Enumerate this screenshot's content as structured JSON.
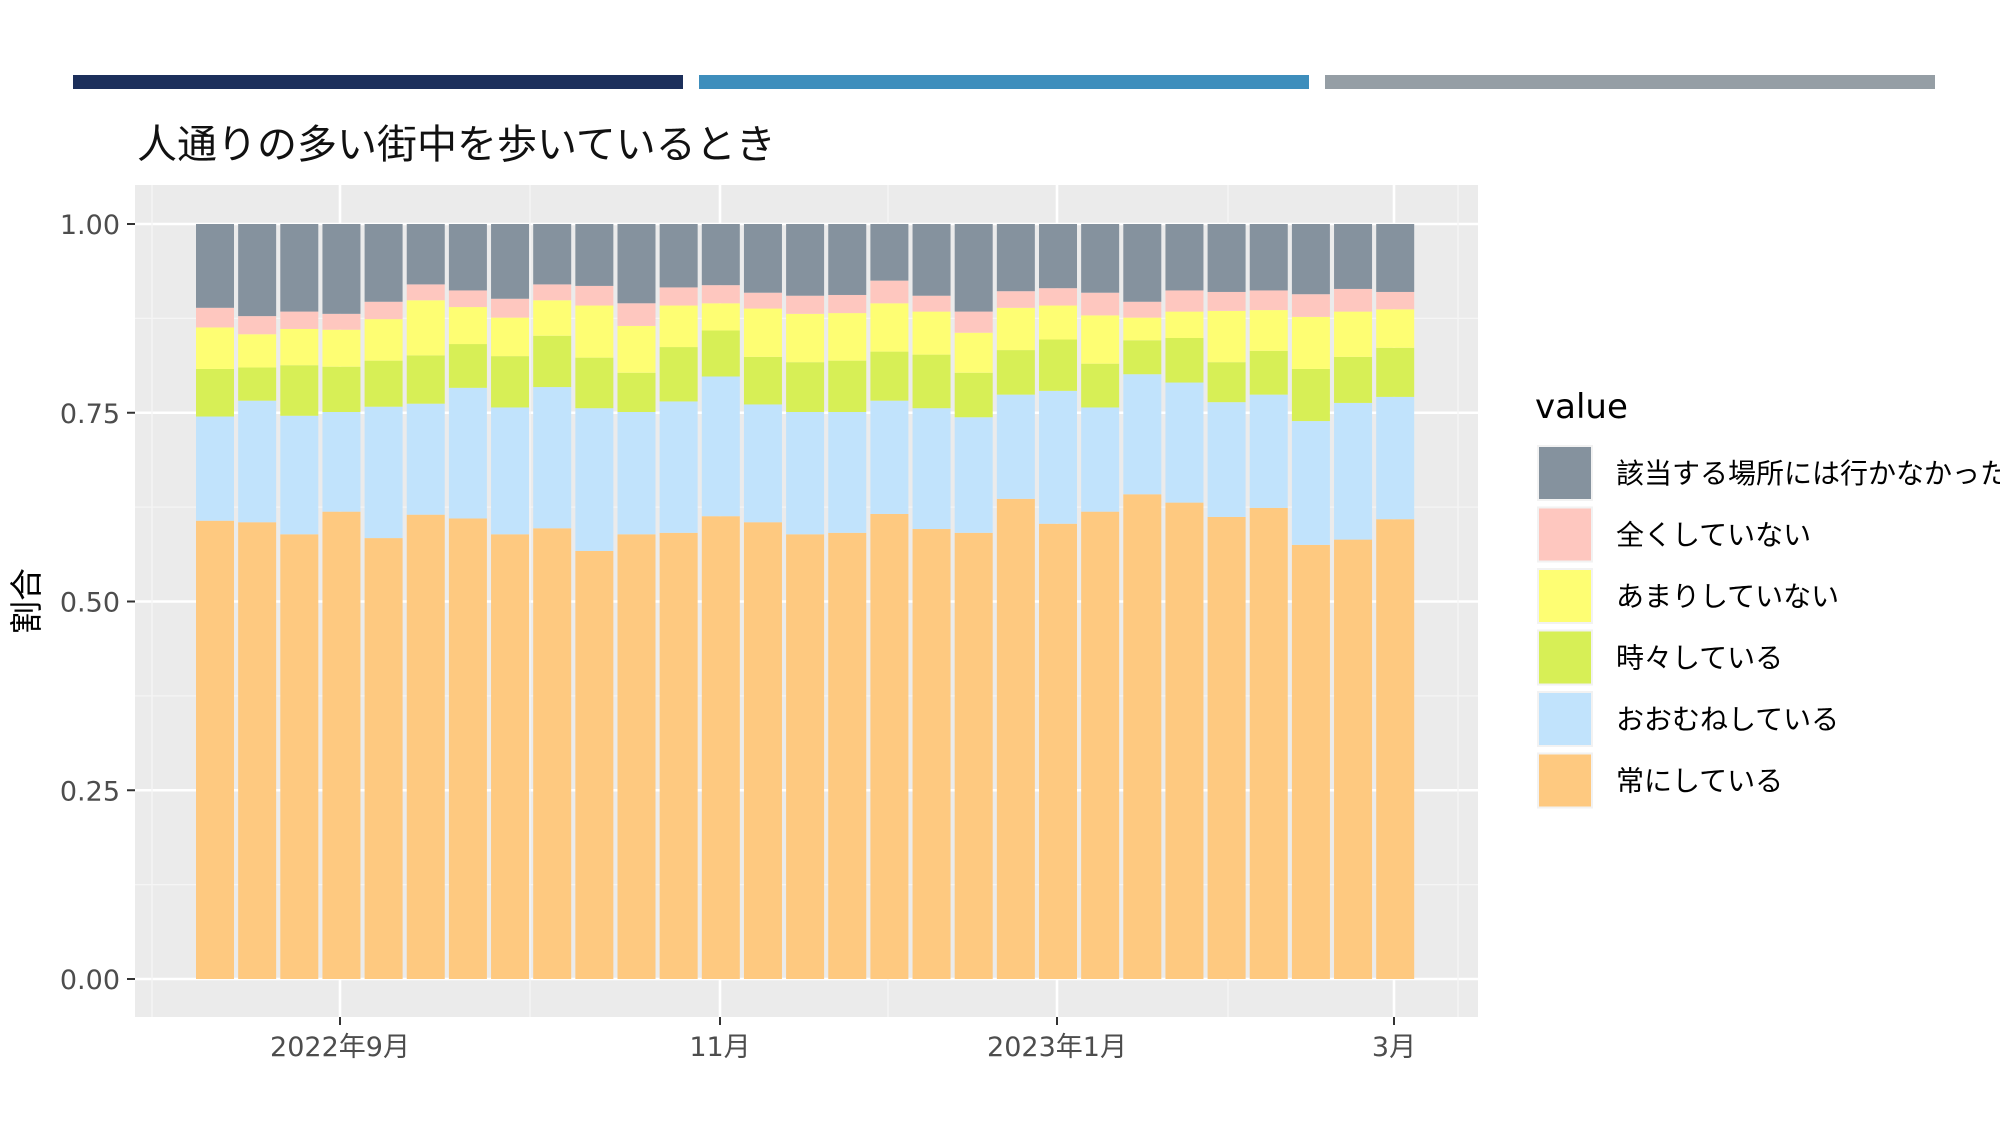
{
  "header": {
    "bars": [
      "#1c2f5b",
      "#3e8ebc",
      "#959ea5"
    ]
  },
  "chart_data": {
    "type": "bar",
    "stacked": true,
    "title": "人通りの多い街中を歩いているとき",
    "xlabel": "",
    "ylabel": "割合",
    "ylim": [
      0,
      1
    ],
    "yticks": [
      "0.00",
      "0.25",
      "0.50",
      "0.75",
      "1.00"
    ],
    "xticks": [
      "2022年9月",
      "11月",
      "2023年1月",
      "3月"
    ],
    "grid": true,
    "legend_title": "value",
    "legend_position": "right",
    "n_bars": 29,
    "series": [
      {
        "name": "常にしている",
        "color": "#fec980",
        "values": [
          0.607,
          0.605,
          0.589,
          0.619,
          0.584,
          0.615,
          0.61,
          0.589,
          0.597,
          0.567,
          0.589,
          0.591,
          0.613,
          0.605,
          0.589,
          0.591,
          0.616,
          0.596,
          0.591,
          0.636,
          0.603,
          0.619,
          0.642,
          0.631,
          0.612,
          0.624,
          0.575,
          0.582,
          0.609
        ]
      },
      {
        "name": "おおむねしている",
        "color": "#c1e3fc",
        "values": [
          0.138,
          0.161,
          0.157,
          0.132,
          0.174,
          0.147,
          0.173,
          0.168,
          0.187,
          0.189,
          0.162,
          0.174,
          0.185,
          0.156,
          0.162,
          0.16,
          0.15,
          0.16,
          0.153,
          0.138,
          0.176,
          0.138,
          0.159,
          0.159,
          0.152,
          0.15,
          0.164,
          0.181,
          0.162
        ]
      },
      {
        "name": "時々している",
        "color": "#d7ef56",
        "values": [
          0.063,
          0.044,
          0.067,
          0.06,
          0.061,
          0.064,
          0.058,
          0.068,
          0.068,
          0.067,
          0.052,
          0.072,
          0.061,
          0.063,
          0.066,
          0.068,
          0.065,
          0.071,
          0.059,
          0.059,
          0.068,
          0.058,
          0.045,
          0.059,
          0.053,
          0.058,
          0.069,
          0.061,
          0.065
        ]
      },
      {
        "name": "あまりしていない",
        "color": "#fefe73",
        "values": [
          0.055,
          0.044,
          0.048,
          0.049,
          0.055,
          0.073,
          0.049,
          0.051,
          0.047,
          0.069,
          0.062,
          0.055,
          0.036,
          0.064,
          0.064,
          0.063,
          0.064,
          0.057,
          0.053,
          0.056,
          0.045,
          0.064,
          0.03,
          0.035,
          0.068,
          0.054,
          0.069,
          0.06,
          0.051
        ]
      },
      {
        "name": "全くしていない",
        "color": "#fec7bf",
        "values": [
          0.026,
          0.024,
          0.023,
          0.021,
          0.023,
          0.021,
          0.022,
          0.025,
          0.021,
          0.026,
          0.03,
          0.024,
          0.024,
          0.021,
          0.024,
          0.024,
          0.03,
          0.021,
          0.028,
          0.022,
          0.023,
          0.03,
          0.021,
          0.028,
          0.025,
          0.026,
          0.03,
          0.03,
          0.023
        ]
      },
      {
        "name": "該当する場所には行かなかった",
        "color": "#85929e",
        "values": [
          0.111,
          0.122,
          0.116,
          0.119,
          0.103,
          0.08,
          0.088,
          0.099,
          0.08,
          0.082,
          0.105,
          0.084,
          0.081,
          0.091,
          0.095,
          0.094,
          0.075,
          0.095,
          0.116,
          0.089,
          0.085,
          0.091,
          0.103,
          0.088,
          0.09,
          0.088,
          0.093,
          0.086,
          0.09
        ]
      }
    ]
  }
}
